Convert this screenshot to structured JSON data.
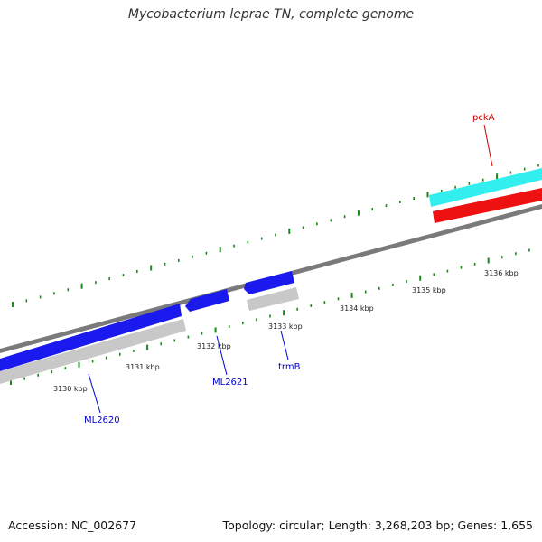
{
  "title": "Mycobacterium leprae TN, complete genome",
  "footer": {
    "accession": "Accession: NC_002677",
    "summary": "Topology: circular; Length: 3,268,203 bp; Genes: 1,655"
  },
  "tick_labels": [
    "3130 kbp",
    "3131 kbp",
    "3132 kbp",
    "3133 kbp",
    "3134 kbp",
    "3135 kbp",
    "3136 kbp"
  ],
  "genes": [
    {
      "name": "ML2620",
      "color": "#0000cc"
    },
    {
      "name": "ML2621",
      "color": "#0000cc"
    },
    {
      "name": "trmB",
      "color": "#0000cc"
    },
    {
      "name": "pckA",
      "color": "#cc0000"
    }
  ],
  "colors": {
    "forward_gene": "#1a1aee",
    "reverse_track": "#c8c8c8",
    "pckA_gene": "#33eeee",
    "pckA_cds": "#ee1111",
    "backbone": "#777777",
    "tick": "#1a8a1a"
  }
}
